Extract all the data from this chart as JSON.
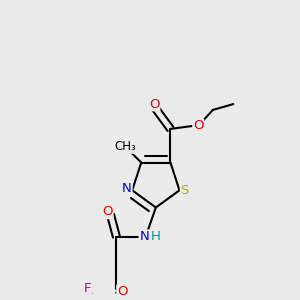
{
  "bg_color": "#ebebeb",
  "bond_lw": 1.5,
  "dbl_off": 0.012,
  "colors": {
    "S": "#b8b000",
    "N": "#0000ee",
    "O": "#ee0000",
    "F": "#bb00bb",
    "H": "#009999",
    "C": "#000000"
  },
  "fs": 9.5,
  "fs_small": 8.5,
  "xlim": [
    0.08,
    0.92
  ],
  "ylim": [
    0.3,
    1.3
  ]
}
